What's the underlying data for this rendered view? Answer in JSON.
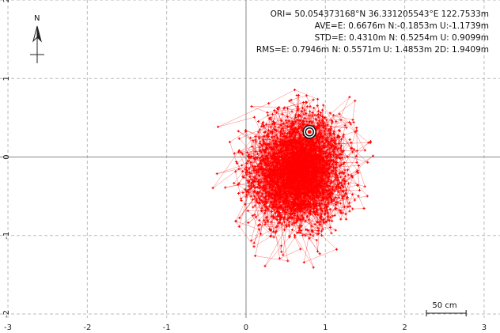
{
  "info_lines": [
    "ORI= 50.054373168°N   36.331205543°E 122.7533m",
    "AVE=E: 0.6676m N:-0.1853m U:-1.1739m",
    "STD=E: 0.4310m N: 0.5254m U: 0.9099m",
    "RMS=E: 0.7946m N: 0.5571m U: 1.4853m 2D: 1.9409m"
  ],
  "north": {
    "label": "N",
    "icon": "north-arrow-icon"
  },
  "scale_bar": {
    "label": "50 cm",
    "length_m": 0.5
  },
  "colors": {
    "points": "#ff0000",
    "grid": "#bbbbbb",
    "axis": "#888888",
    "background": "#ffffff"
  },
  "chart_data": {
    "type": "scatter",
    "xlim": [
      -3.1,
      3.2
    ],
    "ylim": [
      -2.05,
      2.0
    ],
    "x_ticks": [
      "-3",
      "-2",
      "-1",
      "0",
      "1",
      "2",
      "3"
    ],
    "y_ticks": [
      "2",
      "1",
      "0",
      "-1",
      "-2"
    ],
    "x_tick_values": [
      -3,
      -2,
      -1,
      0,
      1,
      2,
      3
    ],
    "y_tick_values": [
      2,
      1,
      0,
      -1,
      -2
    ],
    "grid": "dashed",
    "point_cloud": {
      "center_e": 0.6676,
      "center_n": -0.1853,
      "std_e": 0.431,
      "std_n": 0.5254,
      "count": 3000,
      "marker": "plus",
      "connected": true
    },
    "latest_position": {
      "e": 0.8,
      "n": 0.32
    }
  }
}
